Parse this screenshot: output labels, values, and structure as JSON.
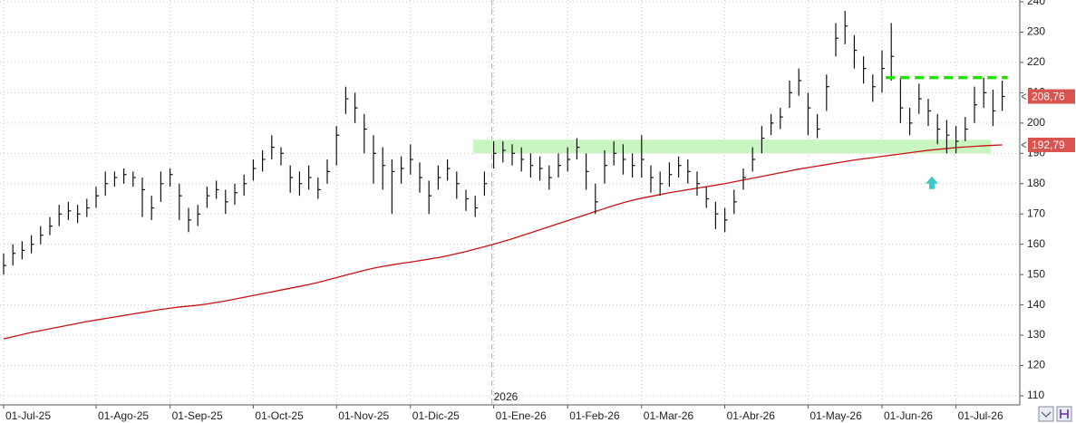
{
  "chart_data": {
    "type": "ohlc",
    "categories": [
      "01-Jul-25",
      null,
      null,
      null,
      null,
      null,
      null,
      null,
      null,
      null,
      "01-Ago-25",
      null,
      null,
      null,
      null,
      null,
      null,
      null,
      "01-Sep-25",
      null,
      null,
      null,
      null,
      null,
      null,
      null,
      null,
      "01-Oct-25",
      null,
      null,
      null,
      null,
      null,
      null,
      null,
      null,
      "01-Nov-25",
      null,
      null,
      null,
      null,
      null,
      null,
      null,
      "01-Dic-25",
      null,
      null,
      null,
      null,
      null,
      null,
      null,
      null,
      "01-Ene-26",
      null,
      null,
      null,
      null,
      null,
      null,
      null,
      "01-Feb-26",
      null,
      null,
      null,
      null,
      null,
      null,
      null,
      "01-Mar-26",
      null,
      null,
      null,
      null,
      null,
      null,
      null,
      null,
      "01-Abr-26",
      null,
      null,
      null,
      null,
      null,
      null,
      null,
      null,
      "01-May-26",
      null,
      null,
      null,
      null,
      null,
      null,
      null,
      "01-Jun-26",
      null,
      null,
      null,
      null,
      null,
      null,
      null,
      "01-Jul-26",
      null,
      null,
      null,
      null,
      null
    ],
    "high": [
      157,
      160,
      161,
      163,
      166,
      169,
      173,
      174,
      173,
      175,
      179,
      184,
      184,
      185,
      184,
      182,
      176,
      184,
      185,
      180,
      172,
      173,
      179,
      181,
      178,
      180,
      183,
      188,
      191,
      196,
      192,
      186,
      184,
      186,
      182,
      188,
      199,
      212,
      210,
      203,
      196,
      192,
      188,
      189,
      193,
      187,
      181,
      186,
      188,
      184,
      178,
      176,
      184,
      194,
      194,
      193,
      192,
      190,
      189,
      186,
      190,
      192,
      195,
      190,
      180,
      191,
      194,
      193,
      190,
      196,
      186,
      184,
      187,
      189,
      188,
      184,
      179,
      174,
      172,
      178,
      185,
      192,
      199,
      203,
      205,
      214,
      218,
      210,
      203,
      216,
      233,
      237,
      229,
      222,
      216,
      224,
      233,
      215,
      205,
      213,
      208,
      203,
      201,
      199,
      202,
      212,
      215,
      211,
      214
    ],
    "low": [
      150,
      153,
      155,
      157,
      160,
      163,
      166,
      168,
      167,
      169,
      172,
      176,
      179,
      180,
      179,
      169,
      168,
      174,
      179,
      168,
      164,
      166,
      172,
      175,
      170,
      173,
      176,
      181,
      184,
      188,
      186,
      177,
      176,
      178,
      175,
      180,
      186,
      203,
      200,
      190,
      180,
      178,
      170,
      180,
      183,
      177,
      170,
      178,
      181,
      175,
      171,
      169,
      176,
      185,
      187,
      186,
      184,
      182,
      181,
      178,
      182,
      184,
      188,
      178,
      170,
      180,
      186,
      183,
      182,
      182,
      177,
      176,
      179,
      182,
      180,
      176,
      172,
      165,
      164,
      170,
      178,
      184,
      190,
      196,
      198,
      205,
      209,
      196,
      195,
      204,
      222,
      226,
      218,
      213,
      207,
      210,
      214,
      200,
      196,
      203,
      199,
      193,
      190,
      190,
      194,
      200,
      205,
      199,
      204
    ],
    "close": [
      153,
      157,
      158,
      160,
      163,
      166,
      170,
      171,
      170,
      172,
      176,
      180,
      182,
      183,
      182,
      178,
      172,
      180,
      183,
      176,
      168,
      170,
      176,
      178,
      174,
      177,
      180,
      185,
      188,
      192,
      190,
      182,
      180,
      182,
      178,
      184,
      196,
      208,
      205,
      198,
      190,
      186,
      184,
      185,
      188,
      182,
      176,
      182,
      185,
      180,
      175,
      172,
      180,
      190,
      191,
      190,
      188,
      186,
      185,
      182,
      186,
      188,
      192,
      184,
      174,
      186,
      190,
      188,
      186,
      188,
      182,
      180,
      183,
      186,
      184,
      180,
      175,
      170,
      168,
      174,
      182,
      188,
      195,
      200,
      202,
      210,
      214,
      205,
      198,
      212,
      228,
      232,
      224,
      218,
      212,
      218,
      222,
      205,
      200,
      208,
      204,
      198,
      196,
      194,
      198,
      206,
      210,
      204,
      208.76
    ],
    "color": "#111111",
    "moving_average": {
      "color": "#cc1111",
      "values": [
        128.8,
        129.5,
        130.2,
        130.9,
        131.5,
        132.1,
        132.7,
        133.3,
        133.9,
        134.5,
        135.0,
        135.5,
        136.0,
        136.5,
        137.0,
        137.5,
        138.0,
        138.5,
        138.9,
        139.3,
        139.6,
        139.9,
        140.3,
        140.8,
        141.3,
        141.9,
        142.5,
        143.1,
        143.7,
        144.3,
        144.9,
        145.5,
        146.1,
        146.7,
        147.4,
        148.2,
        149.0,
        149.8,
        150.6,
        151.4,
        152.1,
        152.7,
        153.2,
        153.7,
        154.1,
        154.6,
        155.1,
        155.6,
        156.2,
        156.9,
        157.6,
        158.4,
        159.2,
        160.0,
        160.9,
        161.8,
        162.8,
        163.8,
        164.8,
        165.8,
        166.8,
        167.8,
        168.8,
        169.8,
        170.8,
        171.8,
        172.8,
        173.7,
        174.5,
        175.2,
        175.8,
        176.4,
        177.0,
        177.5,
        178.0,
        178.5,
        179.0,
        179.5,
        180.0,
        180.6,
        181.2,
        181.8,
        182.4,
        183.0,
        183.6,
        184.2,
        184.8,
        185.3,
        185.8,
        186.3,
        186.8,
        187.3,
        187.8,
        188.2,
        188.6,
        189.0,
        189.4,
        189.8,
        190.2,
        190.6,
        191.0,
        191.3,
        191.6,
        191.9,
        192.1,
        192.3,
        192.5,
        192.65,
        192.79
      ]
    },
    "ylim": [
      107,
      240.6
    ],
    "yticks": [
      110,
      120,
      130,
      140,
      150,
      160,
      170,
      180,
      190,
      200,
      210,
      220,
      230,
      240
    ],
    "grid": true,
    "year_label": "2026",
    "last_price": {
      "value": 208.76,
      "label": "208,76"
    },
    "ma_last": {
      "value": 192.79,
      "label": "192,79"
    },
    "support_zone": {
      "low": 190,
      "high": 194.5,
      "color": "#c8f5c0"
    },
    "resistance": {
      "value": 215,
      "color": "#22dd00"
    }
  }
}
